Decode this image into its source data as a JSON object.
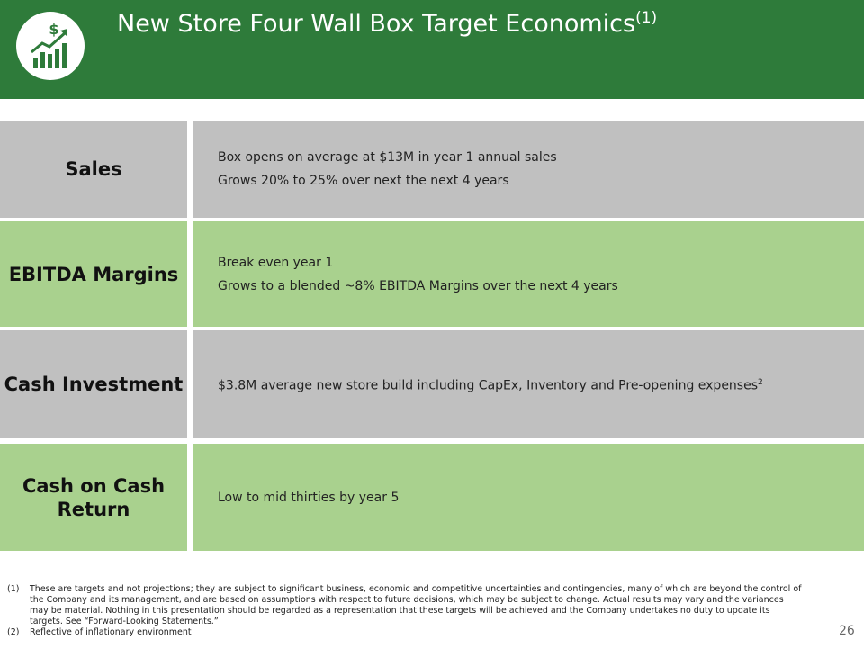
{
  "header": {
    "title": "New Store Four Wall Box Target Economics",
    "title_note": "(1)"
  },
  "rows": [
    {
      "label": "Sales",
      "lines": [
        "Box opens on average at $13M in year 1 annual sales",
        "Grows 20% to 25% over next the next 4 years"
      ]
    },
    {
      "label": "EBITDA Margins",
      "lines": [
        "Break even year 1",
        "Grows to a blended ~8% EBITDA Margins over the next 4 years"
      ]
    },
    {
      "label": "Cash Investment",
      "lines": [
        "$3.8M average new store build including CapEx, Inventory and Pre-opening expenses"
      ],
      "line_note": "2"
    },
    {
      "label": "Cash on Cash Return",
      "lines": [
        "Low to mid thirties by year 5"
      ]
    }
  ],
  "footnotes": [
    {
      "marker": "(1)",
      "text": "These are targets and not projections; they are subject to significant business, economic and competitive uncertainties and contingencies, many of which are beyond the control of the Company and its management, and are based on assumptions with respect to future decisions, which may be subject to change. Actual results may vary and the variances may be material. Nothing in this presentation should be regarded as a representation that these targets will be achieved and the Company undertakes no duty to update its targets. See “Forward-Looking Statements.”"
    },
    {
      "marker": "(2)",
      "text": "Reflective of inflationary environment"
    }
  ],
  "page_number": "26"
}
